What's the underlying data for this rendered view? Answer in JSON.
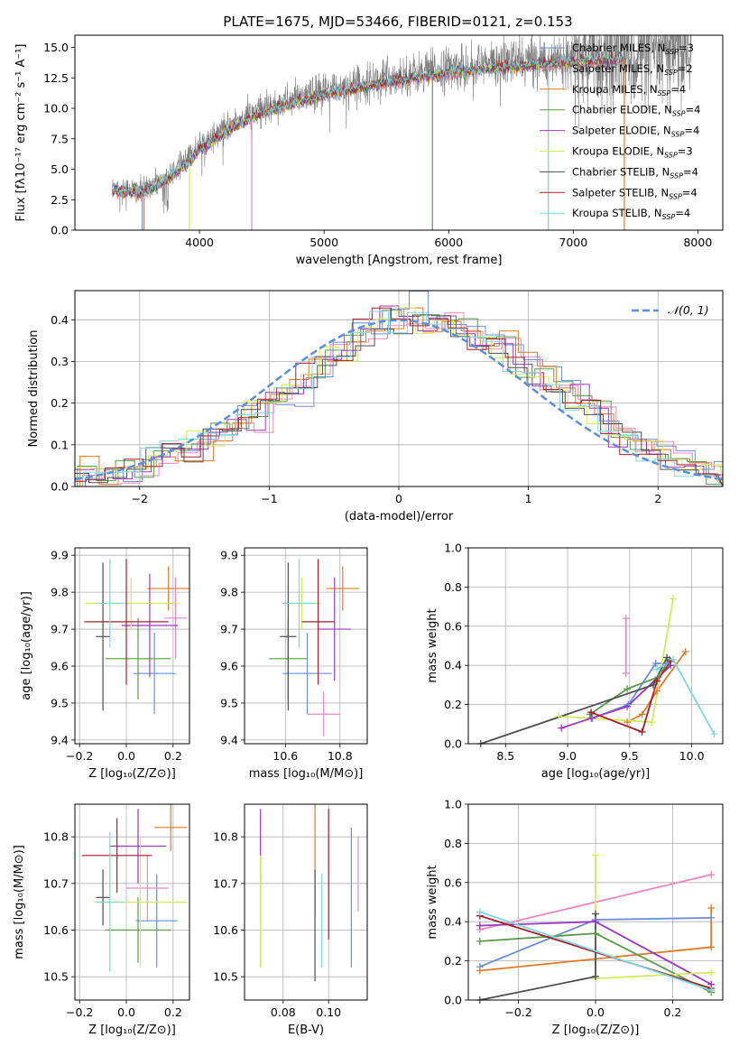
{
  "figure": {
    "title": "PLATE=1675, MJD=53466, FIBERID=0121, z=0.153"
  },
  "series_colors": [
    "#6a8fd8",
    "#e889c0",
    "#e07b2a",
    "#5b9a4c",
    "#9b39c2",
    "#d4ea5a",
    "#4f4f4f",
    "#a81e2c",
    "#7dd8e0"
  ],
  "chart_data": [
    {
      "id": "spectrum",
      "type": "line",
      "xlabel": "wavelength [Angstrom, rest frame]",
      "ylabel": "Flux [fλ10⁻¹⁷ erg cm⁻² s⁻¹ A⁻¹]",
      "xlim": [
        3000,
        8200
      ],
      "ylim": [
        0,
        16
      ],
      "xticks": [
        4000,
        5000,
        6000,
        7000,
        8000
      ],
      "yticks": [
        0.0,
        2.5,
        5.0,
        7.5,
        10.0,
        12.5,
        15.0
      ],
      "observed_color": "#808080",
      "observed_x_range": [
        3300,
        7950
      ],
      "model_x_range": [
        3300,
        7400
      ],
      "continuum_knots": {
        "x": [
          3300,
          3550,
          3700,
          3900,
          4000,
          4300,
          4500,
          5000,
          5500,
          6000,
          6500,
          7000,
          7500,
          7950
        ],
        "y": [
          3.6,
          3.4,
          4.3,
          5.8,
          7.0,
          9.0,
          10.0,
          11.5,
          12.5,
          13.3,
          13.8,
          14.2,
          14.5,
          14.8
        ]
      },
      "legend": [
        {
          "label": "Chabrier MILES, N",
          "sub": "SSP",
          "tail": "=3"
        },
        {
          "label": "Salpeter MILES, N",
          "sub": "SSP",
          "tail": "=2"
        },
        {
          "label": "Kroupa MILES, N",
          "sub": "SSP",
          "tail": "=4"
        },
        {
          "label": "Chabrier ELODIE, N",
          "sub": "SSP",
          "tail": "=4"
        },
        {
          "label": "Salpeter ELODIE, N",
          "sub": "SSP",
          "tail": "=4"
        },
        {
          "label": "Kroupa ELODIE, N",
          "sub": "SSP",
          "tail": "=3"
        },
        {
          "label": "Chabrier STELIB, N",
          "sub": "SSP",
          "tail": "=4"
        },
        {
          "label": "Salpeter STELIB, N",
          "sub": "SSP",
          "tail": "=4"
        },
        {
          "label": "Kroupa STELIB, N",
          "sub": "SSP",
          "tail": "=4"
        }
      ]
    },
    {
      "id": "residuals",
      "type": "histogram",
      "xlabel": "(data-model)/error",
      "ylabel": "Normed distribution",
      "xlim": [
        -2.5,
        2.5
      ],
      "ylim": [
        0,
        0.47
      ],
      "xticks": [
        -2,
        -1,
        0,
        1,
        2
      ],
      "yticks": [
        0.0,
        0.1,
        0.2,
        0.3,
        0.4
      ],
      "bins": 34,
      "reference": {
        "label": "𝒩(0, 1)",
        "mean": 0,
        "sigma": 1,
        "color": "#5b8fd6"
      },
      "base_shape": [
        0.02,
        0.025,
        0.03,
        0.05,
        0.08,
        0.09,
        0.11,
        0.13,
        0.15,
        0.18,
        0.21,
        0.24,
        0.27,
        0.31,
        0.34,
        0.37,
        0.41,
        0.4,
        0.39,
        0.4,
        0.38,
        0.35,
        0.34,
        0.3,
        0.27,
        0.24,
        0.2,
        0.17,
        0.13,
        0.1,
        0.08,
        0.06,
        0.04,
        0.03
      ]
    },
    {
      "id": "age_vs_Z",
      "type": "errorbar",
      "xlabel": "Z [log₁₀(Z/Z⊙)]",
      "ylabel": "age  [log₁₀(age/yr)]",
      "xlim": [
        -0.22,
        0.27
      ],
      "ylim": [
        9.39,
        9.92
      ],
      "xticks": [
        -0.2,
        0.0,
        0.2
      ],
      "yticks": [
        9.4,
        9.5,
        9.6,
        9.7,
        9.8,
        9.9
      ],
      "points": [
        {
          "series": 0,
          "x": 0.12,
          "xerr": 0.09,
          "y": 9.58,
          "yerr": 0.11
        },
        {
          "series": 1,
          "x": 0.21,
          "xerr": 0.05,
          "y": 9.73,
          "yerr": 0.11
        },
        {
          "series": 2,
          "x": 0.18,
          "xerr": 0.09,
          "y": 9.81,
          "yerr": 0.06
        },
        {
          "series": 3,
          "x": 0.05,
          "xerr": 0.14,
          "y": 9.62,
          "yerr": 0.11
        },
        {
          "series": 4,
          "x": 0.1,
          "xerr": 0.12,
          "y": 9.71,
          "yerr": 0.14
        },
        {
          "series": 5,
          "x": 0.02,
          "xerr": 0.2,
          "y": 9.77,
          "yerr": 0.07
        },
        {
          "series": 6,
          "x": -0.1,
          "xerr": 0.03,
          "y": 9.68,
          "yerr": 0.2
        },
        {
          "series": 7,
          "x": 0.0,
          "xerr": 0.18,
          "y": 9.72,
          "yerr": 0.17
        },
        {
          "series": 8,
          "x": -0.07,
          "xerr": 0.06,
          "y": 9.77,
          "yerr": 0.12
        }
      ]
    },
    {
      "id": "age_vs_mass",
      "type": "errorbar",
      "xlabel": "mass [log₁₀(M/M⊙)]",
      "ylabel": "",
      "xlim": [
        10.45,
        10.9
      ],
      "ylim": [
        9.39,
        9.92
      ],
      "xticks": [
        10.6,
        10.8
      ],
      "yticks": [
        9.4,
        9.5,
        9.6,
        9.7,
        9.8,
        9.9
      ],
      "points": [
        {
          "series": 0,
          "x": 10.68,
          "xerr": 0.09,
          "y": 9.58,
          "yerr": 0.11
        },
        {
          "series": 1,
          "x": 10.74,
          "xerr": 0.06,
          "y": 9.47,
          "yerr": 0.06
        },
        {
          "series": 2,
          "x": 10.81,
          "xerr": 0.06,
          "y": 9.81,
          "yerr": 0.06
        },
        {
          "series": 3,
          "x": 10.61,
          "xerr": 0.07,
          "y": 9.62,
          "yerr": 0.11
        },
        {
          "series": 4,
          "x": 10.78,
          "xerr": 0.06,
          "y": 9.7,
          "yerr": 0.14
        },
        {
          "series": 5,
          "x": 10.66,
          "xerr": 0.07,
          "y": 9.77,
          "yerr": 0.07
        },
        {
          "series": 6,
          "x": 10.61,
          "xerr": 0.03,
          "y": 9.68,
          "yerr": 0.2
        },
        {
          "series": 7,
          "x": 10.72,
          "xerr": 0.06,
          "y": 9.72,
          "yerr": 0.17
        },
        {
          "series": 8,
          "x": 10.65,
          "xerr": 0.06,
          "y": 9.77,
          "yerr": 0.12
        }
      ]
    },
    {
      "id": "weight_vs_age",
      "type": "line",
      "xlabel": "age  [log₁₀(age/yr)]",
      "ylabel": "mass weight",
      "xlim": [
        8.2,
        10.25
      ],
      "ylim": [
        0,
        1
      ],
      "xticks": [
        8.5,
        9.0,
        9.5,
        10.0
      ],
      "yticks": [
        0.0,
        0.2,
        0.4,
        0.6,
        0.8,
        1.0
      ],
      "series": [
        {
          "series": 0,
          "x": [
            9.2,
            9.49,
            9.71,
            9.8
          ],
          "y": [
            0.13,
            0.2,
            0.41,
            0.41
          ]
        },
        {
          "series": 1,
          "x": [
            9.47,
            9.47
          ],
          "y": [
            0.36,
            0.64
          ]
        },
        {
          "series": 2,
          "x": [
            9.48,
            9.6,
            9.72,
            9.95
          ],
          "y": [
            0.11,
            0.15,
            0.27,
            0.47
          ]
        },
        {
          "series": 3,
          "x": [
            9.18,
            9.48,
            9.73,
            9.82
          ],
          "y": [
            0.15,
            0.28,
            0.34,
            0.43
          ]
        },
        {
          "series": 4,
          "x": [
            8.95,
            9.19,
            9.48,
            9.83
          ],
          "y": [
            0.08,
            0.13,
            0.19,
            0.4
          ]
        },
        {
          "series": 5,
          "x": [
            8.93,
            9.68,
            9.85
          ],
          "y": [
            0.14,
            0.11,
            0.74
          ]
        },
        {
          "series": 6,
          "x": [
            8.3,
            9.69,
            9.8
          ],
          "y": [
            0.0,
            0.3,
            0.44
          ]
        },
        {
          "series": 7,
          "x": [
            9.19,
            9.6,
            9.72,
            9.83
          ],
          "y": [
            0.16,
            0.06,
            0.32,
            0.42
          ]
        },
        {
          "series": 8,
          "x": [
            9.72,
            9.85,
            10.18
          ],
          "y": [
            0.38,
            0.43,
            0.05
          ]
        }
      ]
    },
    {
      "id": "mass_vs_Z",
      "type": "errorbar",
      "xlabel": "Z [log₁₀(Z/Z⊙)]",
      "ylabel": "mass [log₁₀(M/M⊙)]",
      "xlim": [
        -0.22,
        0.27
      ],
      "ylim": [
        10.45,
        10.87
      ],
      "xticks": [
        -0.2,
        0.0,
        0.2
      ],
      "yticks": [
        10.5,
        10.6,
        10.7,
        10.8
      ],
      "points": [
        {
          "series": 0,
          "x": 0.13,
          "xerr": 0.09,
          "y": 10.62,
          "yerr": 0.1
        },
        {
          "series": 1,
          "x": 0.09,
          "xerr": 0.09,
          "y": 10.69,
          "yerr": 0.07
        },
        {
          "series": 2,
          "x": 0.19,
          "xerr": 0.07,
          "y": 10.82,
          "yerr": 0.05
        },
        {
          "series": 3,
          "x": 0.05,
          "xerr": 0.14,
          "y": 10.6,
          "yerr": 0.07
        },
        {
          "series": 4,
          "x": 0.05,
          "xerr": 0.12,
          "y": 10.78,
          "yerr": 0.08
        },
        {
          "series": 5,
          "x": 0.06,
          "xerr": 0.2,
          "y": 10.66,
          "yerr": 0.14
        },
        {
          "series": 6,
          "x": -0.1,
          "xerr": 0.03,
          "y": 10.67,
          "yerr": 0.06
        },
        {
          "series": 7,
          "x": -0.04,
          "xerr": 0.15,
          "y": 10.76,
          "yerr": 0.08
        },
        {
          "series": 8,
          "x": -0.07,
          "xerr": 0.06,
          "y": 10.66,
          "yerr": 0.15
        }
      ]
    },
    {
      "id": "mass_vs_ebv",
      "type": "errorbar",
      "xlabel": "E(B-V)",
      "ylabel": "",
      "xlim": [
        0.063,
        0.117
      ],
      "ylim": [
        10.45,
        10.87
      ],
      "xticks": [
        0.08,
        0.1
      ],
      "yticks": [
        10.5,
        10.6,
        10.7,
        10.8
      ],
      "points": [
        {
          "series": 0,
          "x": 0.11,
          "y": 10.67,
          "yerr": 0.15
        },
        {
          "series": 1,
          "x": 0.113,
          "y": 10.72,
          "yerr": 0.08
        },
        {
          "series": 2,
          "x": 0.094,
          "y": 10.75,
          "yerr": 0.12
        },
        {
          "series": 3,
          "x": 0.07,
          "y": 10.62,
          "yerr": 0.1
        },
        {
          "series": 4,
          "x": 0.07,
          "y": 10.78,
          "yerr": 0.08
        },
        {
          "series": 5,
          "x": 0.07,
          "y": 10.64,
          "yerr": 0.12
        },
        {
          "series": 6,
          "x": 0.094,
          "y": 10.61,
          "yerr": 0.12
        },
        {
          "series": 7,
          "x": 0.1,
          "y": 10.72,
          "yerr": 0.14
        },
        {
          "series": 8,
          "x": 0.097,
          "y": 10.62,
          "yerr": 0.1
        }
      ]
    },
    {
      "id": "weight_vs_Z",
      "type": "line",
      "xlabel": "Z [log₁₀(Z/Z⊙)]",
      "ylabel": "mass weight",
      "xlim": [
        -0.33,
        0.33
      ],
      "ylim": [
        0,
        1
      ],
      "xticks": [
        -0.2,
        0.0,
        0.2
      ],
      "yticks": [
        0.0,
        0.2,
        0.4,
        0.6,
        0.8,
        1.0
      ],
      "series": [
        {
          "series": 0,
          "x": [
            -0.3,
            0.0,
            0.3
          ],
          "y": [
            0.17,
            0.41,
            0.42
          ]
        },
        {
          "series": 1,
          "x": [
            -0.3,
            0.3
          ],
          "y": [
            0.36,
            0.64
          ]
        },
        {
          "series": 2,
          "x": [
            -0.3,
            0.3,
            0.3
          ],
          "y": [
            0.15,
            0.27,
            0.47
          ]
        },
        {
          "series": 3,
          "x": [
            -0.3,
            0.0,
            0.3
          ],
          "y": [
            0.3,
            0.34,
            0.04
          ]
        },
        {
          "series": 4,
          "x": [
            -0.3,
            0.0,
            0.3
          ],
          "y": [
            0.38,
            0.4,
            0.08
          ]
        },
        {
          "series": 5,
          "x": [
            0.0,
            0.0,
            0.3
          ],
          "y": [
            0.74,
            0.11,
            0.14
          ]
        },
        {
          "series": 6,
          "x": [
            -0.3,
            0.0,
            0.0
          ],
          "y": [
            0.0,
            0.12,
            0.44
          ]
        },
        {
          "series": 7,
          "x": [
            -0.3,
            0.3
          ],
          "y": [
            0.43,
            0.06
          ]
        },
        {
          "series": 8,
          "x": [
            -0.3,
            0.3
          ],
          "y": [
            0.45,
            0.05
          ]
        }
      ]
    }
  ]
}
